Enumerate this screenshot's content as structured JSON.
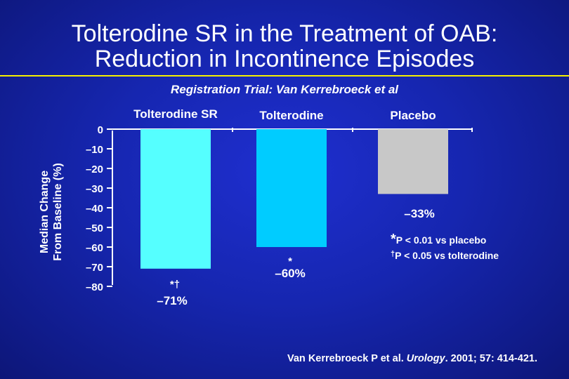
{
  "slide": {
    "title_line1": "Tolterodine SR in the Treatment of OAB:",
    "title_line2": "Reduction in Incontinence Episodes",
    "subtitle": "Registration Trial: Van Kerrebroeck et al",
    "colors": {
      "accent_rule": "#f6f000",
      "background": "#1626b0",
      "text": "#ffffff"
    }
  },
  "chart_data": {
    "type": "bar",
    "ylabel_line1": "Median Change",
    "ylabel_line2": "From Baseline (%)",
    "ylim": [
      -80,
      0
    ],
    "yticks": [
      0,
      -10,
      -20,
      -30,
      -40,
      -50,
      -60,
      -70,
      -80
    ],
    "ytick_labels": [
      "0",
      "–10",
      "–20",
      "–30",
      "–40",
      "–50",
      "–60",
      "–70",
      "–80"
    ],
    "categories": [
      "Tolterodine SR",
      "Tolterodine",
      "Placebo"
    ],
    "values": [
      -71,
      -60,
      -33
    ],
    "value_labels": [
      "–71%",
      "–60%",
      "–33%"
    ],
    "markers": [
      "*†",
      "*",
      ""
    ],
    "colors": [
      "#55ffff",
      "#00ccff",
      "#c8c8c8"
    ],
    "axis_position": "top",
    "grid": false
  },
  "footnotes": {
    "f1_symbol": "*",
    "f1_text": "P < 0.01 vs placebo",
    "f2_symbol": "†",
    "f2_text": "P < 0.05 vs tolterodine"
  },
  "citation": {
    "authors": "Van Kerrebroeck P et al. ",
    "journal": "Urology",
    "details": ". 2001; 57: 414-421."
  }
}
